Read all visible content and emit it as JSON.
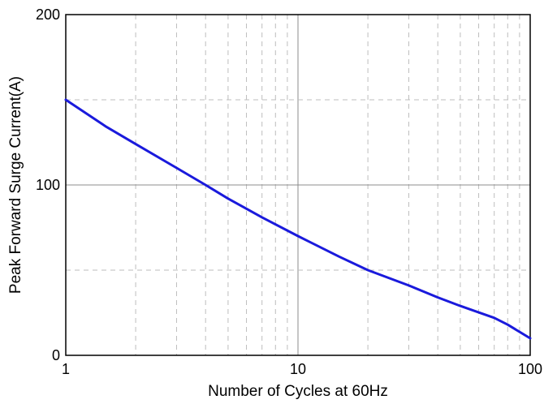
{
  "chart_data": {
    "type": "line",
    "title": "",
    "xlabel": "Number of Cycles at 60Hz",
    "ylabel": "Peak Forward Surge Current(A)",
    "x_scale": "log",
    "xlim": [
      1,
      100
    ],
    "ylim": [
      0,
      200
    ],
    "x_ticks": [
      {
        "value": 1,
        "label": "1"
      },
      {
        "value": 10,
        "label": "10"
      },
      {
        "value": 100,
        "label": "100"
      }
    ],
    "y_ticks": [
      {
        "value": 0,
        "label": "0"
      },
      {
        "value": 100,
        "label": "100"
      },
      {
        "value": 200,
        "label": "200"
      }
    ],
    "grid": {
      "major_solid": true,
      "minor_dashed": true,
      "y_minor": [
        50,
        150
      ]
    },
    "series": [
      {
        "color": "#1a1adc",
        "x": [
          1,
          1.5,
          2,
          3,
          4,
          5,
          7,
          10,
          15,
          20,
          30,
          40,
          50,
          70,
          80,
          100
        ],
        "y": [
          150,
          134,
          124,
          110,
          100,
          92,
          81,
          70,
          58,
          50,
          41,
          34,
          29,
          22,
          18,
          10
        ]
      }
    ]
  }
}
